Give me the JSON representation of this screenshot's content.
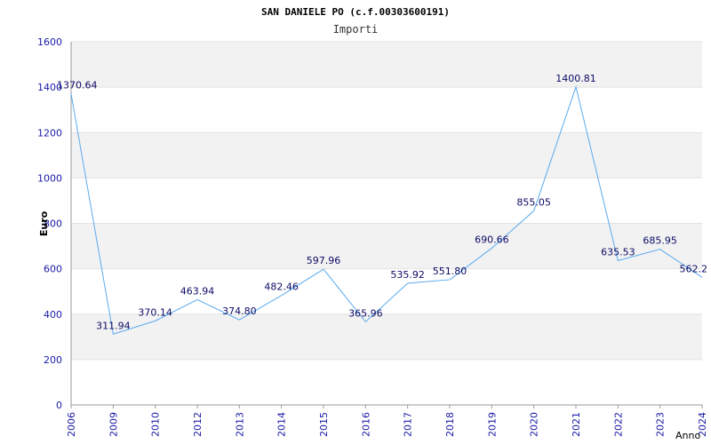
{
  "chart_data": {
    "type": "line",
    "title": "SAN DANIELE PO (c.f.00303600191)",
    "subtitle": "Importi",
    "xlabel": "Anno",
    "ylabel": "Euro",
    "ylim": [
      0,
      1600
    ],
    "yticks": [
      0,
      200,
      400,
      600,
      800,
      1000,
      1200,
      1400,
      1600
    ],
    "grid": true,
    "categories": [
      "2006",
      "2009",
      "2010",
      "2012",
      "2013",
      "2014",
      "2015",
      "2016",
      "2017",
      "2018",
      "2019",
      "2020",
      "2021",
      "2022",
      "2023",
      "2024"
    ],
    "values": [
      1370.64,
      311.94,
      370.14,
      463.94,
      374.8,
      482.46,
      597.96,
      365.96,
      535.92,
      551.8,
      690.66,
      855.05,
      1400.81,
      635.53,
      685.95,
      562.2
    ],
    "data_labels": [
      "1370.64",
      "311.94",
      "370.14",
      "463.94",
      "374.80",
      "482.46",
      "597.96",
      "365.96",
      "535.92",
      "551.80",
      "690.66",
      "855.05",
      "1400.81",
      "635.53",
      "685.95",
      "562.2"
    ],
    "colors": {
      "line": "#5aaaee",
      "band": "#f2f2f2",
      "tick_text": "#1a1aa6",
      "label_text": "#0b0b66",
      "axis": "#999999"
    }
  }
}
